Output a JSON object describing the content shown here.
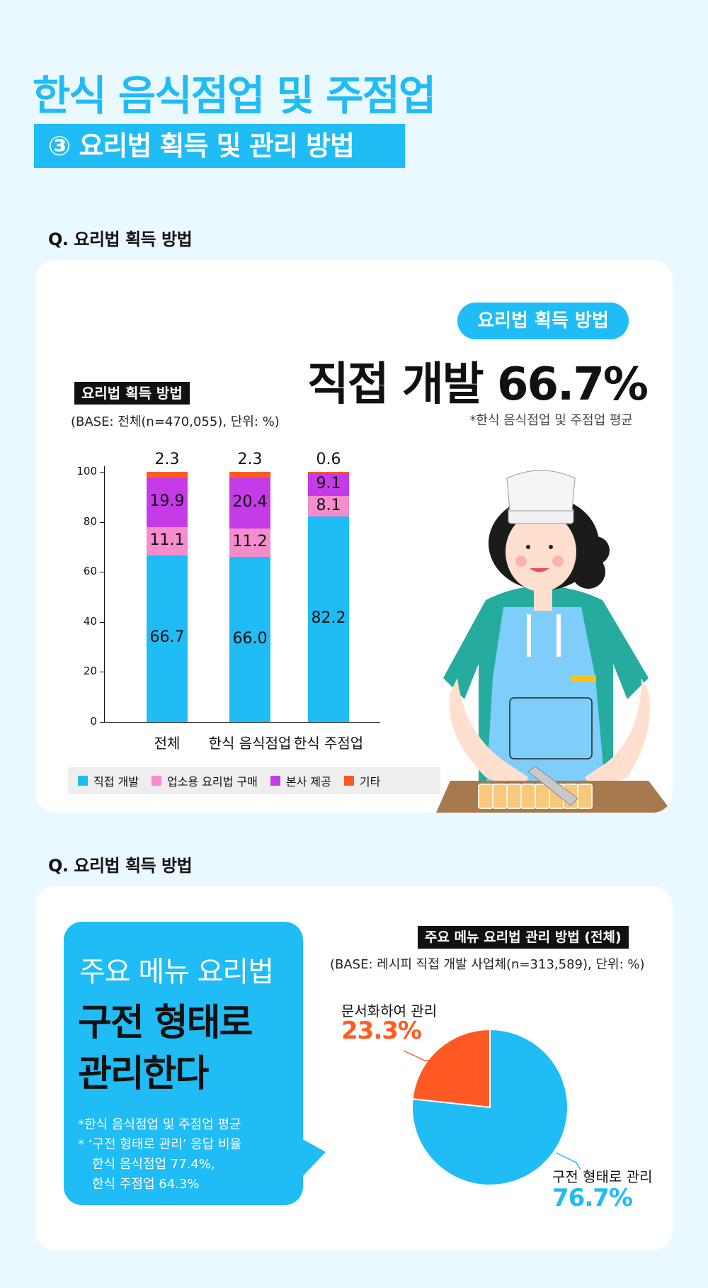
{
  "header": {
    "title": "한식 음식점업 및 주점업",
    "subtitle": "③ 요리법 획득 및 관리 방법"
  },
  "section1": {
    "question": "Q. 요리법 획득 방법",
    "chart_tag": "요리법 획득 방법",
    "base_note": "(BASE: 전체(n=470,055), 단위: %)",
    "pill": "요리법 획득 방법",
    "headline": "직접 개발 66.7%",
    "avg_note": "*한식 음식점업 및 주점업 평균"
  },
  "section2": {
    "question": "Q. 요리법 획득 방법",
    "bubble_line1": "주요 메뉴 요리법",
    "bubble_line2": "구전 형태로",
    "bubble_line3": "관리한다",
    "bubble_note1": "*한식 음식점업 및 주점업 평균",
    "bubble_note2": "* ‘구전 형태로 관리’ 응답 비율",
    "bubble_note3": "  한식 음식점업 77.4%,",
    "bubble_note4": "  한식 주점업 64.3%",
    "chart_tag": "주요 메뉴 요리법 관리 방법 (전체)",
    "base_note": "(BASE: 레시피 직접 개발 사업체(n=313,589), 단위: %)",
    "slice1_name": "문서화하여 관리",
    "slice1_value": "23.3%",
    "slice2_name": "구전 형태로 관리",
    "slice2_value": "76.7%"
  },
  "colors": {
    "accent": "#1fbcf5",
    "direct": "#1fbcf5",
    "purchase": "#f58ccc",
    "hq": "#c63be8",
    "other": "#ff5a24",
    "pie_doc": "#ff5a24",
    "pie_oral": "#1fbcf5"
  },
  "chart_data": [
    {
      "type": "bar",
      "stacked": true,
      "categories": [
        "전체",
        "한식 음식점업",
        "한식 주점업"
      ],
      "series": [
        {
          "name": "직접 개발",
          "values": [
            66.7,
            66.0,
            82.2
          ]
        },
        {
          "name": "업소용 요리법 구매",
          "values": [
            11.1,
            11.2,
            8.1
          ]
        },
        {
          "name": "본사 제공",
          "values": [
            19.9,
            20.4,
            9.1
          ]
        },
        {
          "name": "기타",
          "values": [
            2.3,
            2.3,
            0.6
          ]
        }
      ],
      "ylim": [
        0,
        100
      ],
      "yticks": [
        "0",
        "20",
        "40",
        "60",
        "80",
        "100"
      ],
      "grid": false,
      "legend_position": "bottom",
      "labels": [
        [
          "66.7",
          "66.0",
          "82.2"
        ],
        [
          "11.1",
          "11.2",
          "8.1"
        ],
        [
          "19.9",
          "20.4",
          "9.1"
        ],
        [
          "2.3",
          "2.3",
          "0.6"
        ]
      ]
    },
    {
      "type": "pie",
      "slices": [
        {
          "name": "문서화하여 관리",
          "value": 23.3
        },
        {
          "name": "구전 형태로 관리",
          "value": 76.7
        }
      ]
    }
  ]
}
